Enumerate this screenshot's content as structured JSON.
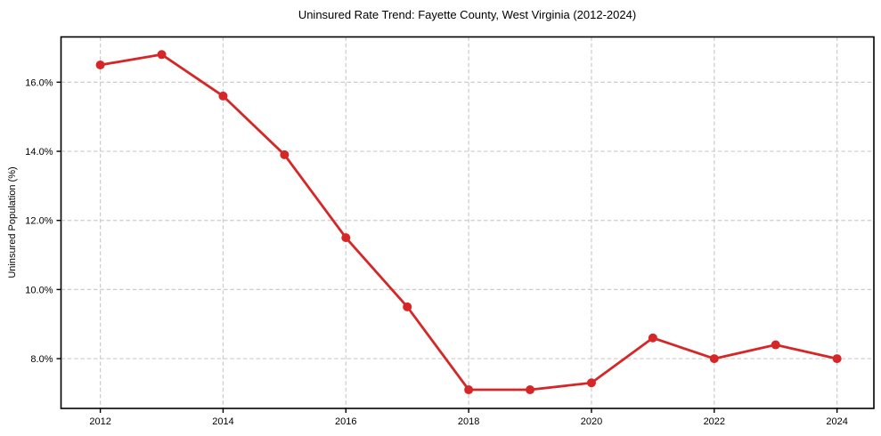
{
  "chart_data": {
    "type": "line",
    "title": "Uninsured Rate Trend: Fayette County, West Virginia (2012-2024)",
    "xlabel": "",
    "ylabel": "Uninsured Population (%)",
    "x": [
      2012,
      2013,
      2014,
      2015,
      2016,
      2017,
      2018,
      2019,
      2020,
      2021,
      2022,
      2023,
      2024
    ],
    "series": [
      {
        "values": [
          16.5,
          16.8,
          15.6,
          13.9,
          11.5,
          9.5,
          7.1,
          7.1,
          7.3,
          8.6,
          8.0,
          8.4,
          8.0
        ]
      }
    ],
    "xlim": [
      2011.36,
      2024.6
    ],
    "ylim": [
      6.56,
      17.31
    ],
    "xticks": {
      "values": [
        2012,
        2014,
        2016,
        2018,
        2020,
        2022,
        2024
      ],
      "labels": [
        "2012",
        "2014",
        "2016",
        "2018",
        "2020",
        "2022",
        "2024"
      ]
    },
    "yticks": {
      "values": [
        8,
        10,
        12,
        14,
        16
      ],
      "labels": [
        "8.0%",
        "10.0%",
        "12.0%",
        "14.0%",
        "16.0%"
      ]
    },
    "grid": true,
    "legend": "none",
    "style": {
      "line_color": "#d62728",
      "marker": "circle",
      "grid_color": "#cccccc",
      "spine_color": "#000000",
      "text_color": "#000000",
      "background": "#ffffff"
    }
  }
}
